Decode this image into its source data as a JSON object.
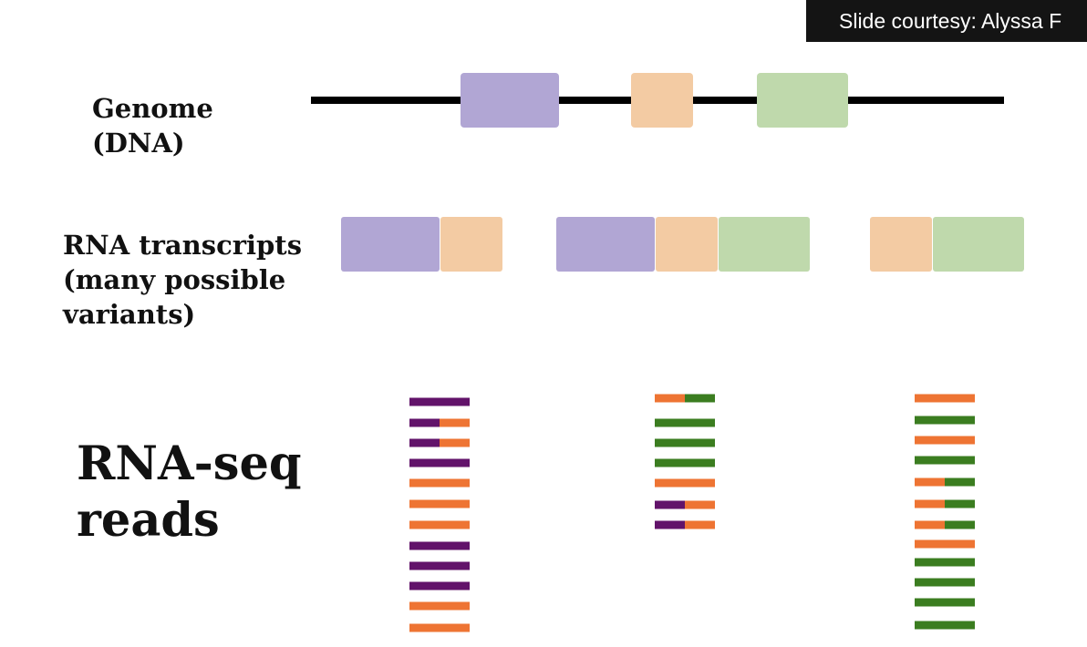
{
  "slide": {
    "courtesy": "Slide courtesy: Alyssa F",
    "genome_label": "Genome\n(DNA)",
    "transcripts_label": "RNA transcripts\n(many possible\nvariants)",
    "reads_label": "RNA-seq\nreads"
  },
  "colors": {
    "exon_purple": "#b1a6d4",
    "exon_peach": "#f3cba3",
    "exon_green": "#bfd9ac",
    "read_purple": "#62136a",
    "read_orange": "#ee7433",
    "read_green": "#3b7d20",
    "dna_line": "#000000"
  },
  "diagram": {
    "exons": [
      "purple",
      "peach",
      "green"
    ],
    "transcripts": [
      [
        "purple",
        "peach"
      ],
      [
        "purple",
        "peach",
        "green"
      ],
      [
        "peach",
        "green"
      ]
    ],
    "read_columns": [
      [
        "purple",
        "purple-orange",
        "purple-orange",
        "purple",
        "orange",
        "orange",
        "orange",
        "purple",
        "purple",
        "purple",
        "orange",
        "orange"
      ],
      [
        "orange-green",
        "green",
        "green",
        "green",
        "orange",
        "purple-orange",
        "purple-orange"
      ],
      [
        "orange",
        "green",
        "orange",
        "green",
        "orange-green",
        "orange-green",
        "orange-green",
        "orange",
        "green",
        "green",
        "green",
        "green"
      ]
    ]
  }
}
